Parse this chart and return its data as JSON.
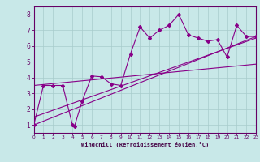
{
  "bg_color": "#c8e8e8",
  "grid_color": "#a8cccc",
  "line_color": "#880088",
  "xlabel": "Windchill (Refroidissement éolien,°C)",
  "xlim": [
    0,
    23
  ],
  "ylim": [
    0.5,
    8.5
  ],
  "xticks": [
    0,
    1,
    2,
    3,
    4,
    5,
    6,
    7,
    8,
    9,
    10,
    11,
    12,
    13,
    14,
    15,
    16,
    17,
    18,
    19,
    20,
    21,
    22,
    23
  ],
  "yticks": [
    1,
    2,
    3,
    4,
    5,
    6,
    7,
    8
  ],
  "main_x": [
    0,
    1,
    2,
    3,
    4,
    4.2,
    5,
    6,
    7,
    8,
    9,
    10,
    11,
    12,
    13,
    14,
    15,
    16,
    17,
    18,
    19,
    20,
    21,
    22,
    23
  ],
  "main_y": [
    1.0,
    3.5,
    3.5,
    3.5,
    1.0,
    0.9,
    2.5,
    4.1,
    4.05,
    3.6,
    3.5,
    5.5,
    7.2,
    6.5,
    7.0,
    7.3,
    8.0,
    6.7,
    6.5,
    6.3,
    6.4,
    5.3,
    7.3,
    6.6,
    6.6
  ],
  "line1_x": [
    0,
    23
  ],
  "line1_y": [
    1.0,
    6.6
  ],
  "line2_x": [
    0,
    23
  ],
  "line2_y": [
    3.5,
    4.85
  ],
  "line3_x": [
    0,
    23
  ],
  "line3_y": [
    1.5,
    6.5
  ]
}
